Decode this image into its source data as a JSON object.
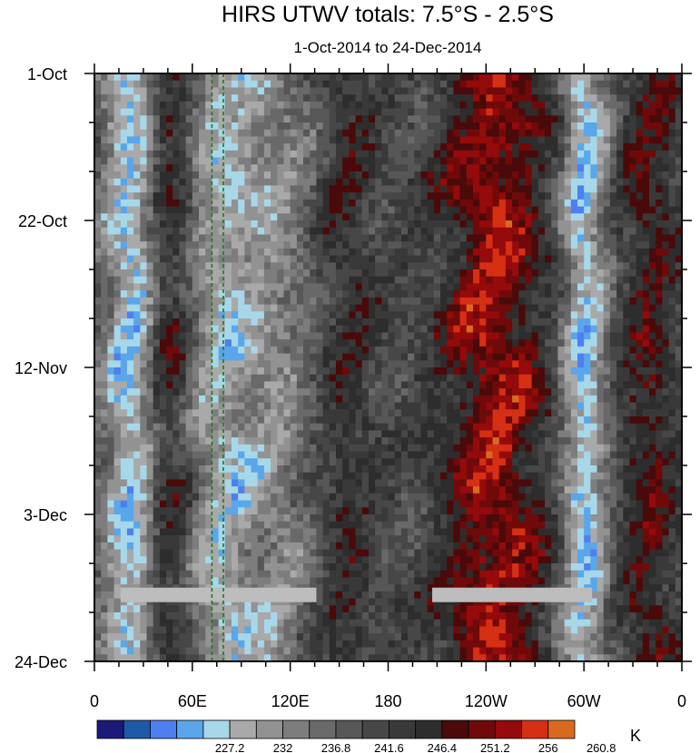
{
  "chart_data": {
    "type": "heatmap",
    "title": "HIRS UTWV totals: 7.5°S - 2.5°S",
    "subtitle": "1-Oct-2014 to 24-Dec-2014",
    "x_ticks": [
      {
        "label": "0",
        "lon": 0
      },
      {
        "label": "60E",
        "lon": 60
      },
      {
        "label": "120E",
        "lon": 120
      },
      {
        "label": "180",
        "lon": 180
      },
      {
        "label": "120W",
        "lon": 240
      },
      {
        "label": "60W",
        "lon": 300
      },
      {
        "label": "0",
        "lon": 360
      }
    ],
    "xlim": [
      0,
      360
    ],
    "y_ticks": [
      {
        "label": "1-Oct",
        "day": 0
      },
      {
        "label": "22-Oct",
        "day": 21
      },
      {
        "label": "12-Nov",
        "day": 42
      },
      {
        "label": "3-Dec",
        "day": 63
      },
      {
        "label": "24-Dec",
        "day": 84
      }
    ],
    "ylim": [
      0,
      84
    ],
    "colorbar": {
      "colors": [
        "#1a1a7a",
        "#1f5aa8",
        "#4d7ff0",
        "#5aa6ea",
        "#a6d8ea",
        "#a9a9a9",
        "#929292",
        "#7d7d7d",
        "#696969",
        "#575757",
        "#474747",
        "#393939",
        "#2d2d2d",
        "#4a0a0a",
        "#700a0a",
        "#950a0a",
        "#d52f14",
        "#d86a20"
      ],
      "labels": [
        "227.2",
        "232",
        "236.8",
        "241.6",
        "246.4",
        "251.2",
        "256",
        "260.8"
      ],
      "unit": "K"
    },
    "missing_data": [
      {
        "lon_start": 16,
        "lon_end": 136,
        "day": 74.5
      },
      {
        "lon_start": 207,
        "lon_end": 305,
        "day": 74.5
      }
    ],
    "reference_lines": [
      {
        "lon": 72
      },
      {
        "lon": 79
      }
    ],
    "bands": [
      {
        "lon": 23,
        "width": 17,
        "amp": -1.5,
        "color": "cold"
      },
      {
        "lon": 78,
        "width": 22,
        "amp": -1.1,
        "color": "cold"
      },
      {
        "lon": 112,
        "width": 22,
        "amp": -0.7,
        "color": "cold"
      },
      {
        "lon": 300,
        "width": 14,
        "amp": -1.5,
        "color": "cold"
      },
      {
        "lon": 45,
        "width": 14,
        "amp": 0.9,
        "color": "warm"
      },
      {
        "lon": 155,
        "width": 18,
        "amp": 0.5,
        "color": "warm"
      },
      {
        "lon": 245,
        "width": 32,
        "amp": 1.3,
        "color": "warm"
      },
      {
        "lon": 340,
        "width": 18,
        "amp": 0.8,
        "color": "warm"
      }
    ]
  }
}
